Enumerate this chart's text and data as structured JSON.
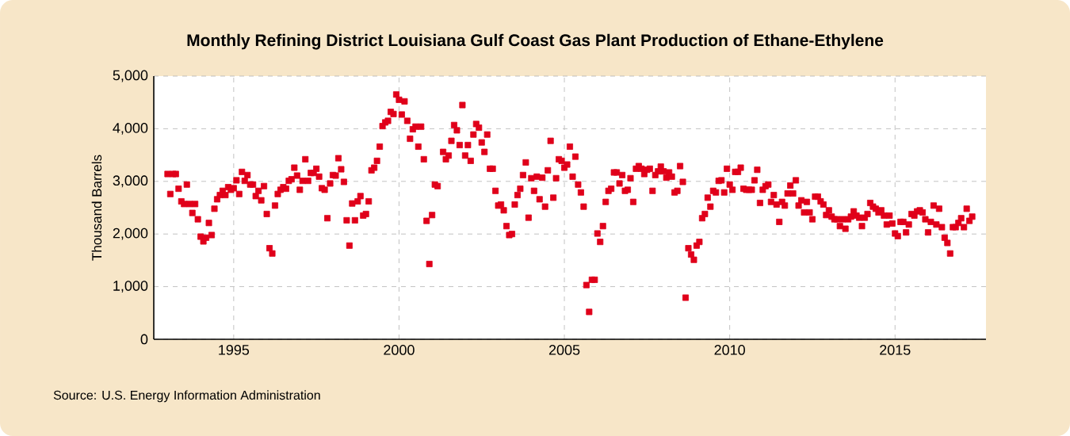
{
  "chart_data": {
    "type": "scatter",
    "title": "Monthly Refining District Louisiana Gulf Coast Gas Plant Production of Ethane-Ethylene",
    "ylabel": "Thousand Barrels",
    "annotations": [
      "Source: U.S. Energy Information Administration"
    ],
    "color": "#e0001a",
    "marker": "square",
    "grid": true,
    "xlim": [
      "1992-08",
      "2017-10"
    ],
    "xticks": [
      "1995",
      "2000",
      "2005",
      "2010",
      "2015"
    ],
    "ylim": [
      0,
      5000
    ],
    "yticks": [
      0,
      {
        "value": 1000,
        "label": "1,000"
      },
      {
        "value": 2000,
        "label": "2,000"
      },
      {
        "value": 3000,
        "label": "3,000"
      },
      {
        "value": 4000,
        "label": "4,000"
      },
      {
        "value": 5000,
        "label": "5,000"
      }
    ],
    "x": [
      "1993-01",
      "1993-02",
      "1993-03",
      "1993-04",
      "1993-05",
      "1993-06",
      "1993-07",
      "1993-08",
      "1993-09",
      "1993-10",
      "1993-11",
      "1993-12",
      "1994-01",
      "1994-02",
      "1994-03",
      "1994-04",
      "1994-05",
      "1994-06",
      "1994-07",
      "1994-08",
      "1994-09",
      "1994-10",
      "1994-11",
      "1994-12",
      "1995-01",
      "1995-02",
      "1995-03",
      "1995-04",
      "1995-05",
      "1995-06",
      "1995-07",
      "1995-08",
      "1995-09",
      "1995-10",
      "1995-11",
      "1995-12",
      "1996-01",
      "1996-02",
      "1996-03",
      "1996-04",
      "1996-05",
      "1996-06",
      "1996-07",
      "1996-08",
      "1996-09",
      "1996-10",
      "1996-11",
      "1996-12",
      "1997-01",
      "1997-02",
      "1997-03",
      "1997-04",
      "1997-05",
      "1997-06",
      "1997-07",
      "1997-08",
      "1997-09",
      "1997-10",
      "1997-11",
      "1997-12",
      "1998-01",
      "1998-02",
      "1998-03",
      "1998-04",
      "1998-05",
      "1998-06",
      "1998-07",
      "1998-08",
      "1998-09",
      "1998-10",
      "1998-11",
      "1998-12",
      "1999-01",
      "1999-02",
      "1999-03",
      "1999-04",
      "1999-05",
      "1999-06",
      "1999-07",
      "1999-08",
      "1999-09",
      "1999-10",
      "1999-11",
      "1999-12",
      "2000-01",
      "2000-02",
      "2000-03",
      "2000-04",
      "2000-05",
      "2000-06",
      "2000-07",
      "2000-08",
      "2000-09",
      "2000-10",
      "2000-11",
      "2000-12",
      "2001-01",
      "2001-02",
      "2001-03",
      "2001-05",
      "2001-06",
      "2001-07",
      "2001-08",
      "2001-09",
      "2001-10",
      "2001-11",
      "2001-12",
      "2002-01",
      "2002-02",
      "2002-03",
      "2002-04",
      "2002-05",
      "2002-06",
      "2002-07",
      "2002-08",
      "2002-09",
      "2002-10",
      "2002-11",
      "2002-12",
      "2003-01",
      "2003-02",
      "2003-03",
      "2003-04",
      "2003-05",
      "2003-06",
      "2003-07",
      "2003-08",
      "2003-09",
      "2003-10",
      "2003-11",
      "2003-12",
      "2004-01",
      "2004-02",
      "2004-03",
      "2004-04",
      "2004-05",
      "2004-06",
      "2004-07",
      "2004-08",
      "2004-09",
      "2004-10",
      "2004-11",
      "2004-12",
      "2005-01",
      "2005-02",
      "2005-03",
      "2005-04",
      "2005-05",
      "2005-06",
      "2005-07",
      "2005-08",
      "2005-09",
      "2005-10",
      "2005-11",
      "2005-12",
      "2006-01",
      "2006-02",
      "2006-03",
      "2006-04",
      "2006-05",
      "2006-06",
      "2006-07",
      "2006-08",
      "2006-09",
      "2006-10",
      "2006-11",
      "2006-12",
      "2007-01",
      "2007-02",
      "2007-03",
      "2007-04",
      "2007-05",
      "2007-06",
      "2007-07",
      "2007-08",
      "2007-09",
      "2007-10",
      "2007-11",
      "2007-12",
      "2008-01",
      "2008-02",
      "2008-03",
      "2008-04",
      "2008-05",
      "2008-06",
      "2008-07",
      "2008-08",
      "2008-09",
      "2008-10",
      "2008-11",
      "2008-12",
      "2009-01",
      "2009-02",
      "2009-03",
      "2009-04",
      "2009-05",
      "2009-06",
      "2009-07",
      "2009-08",
      "2009-09",
      "2009-10",
      "2009-11",
      "2009-12",
      "2010-01",
      "2010-02",
      "2010-03",
      "2010-04",
      "2010-05",
      "2010-06",
      "2010-07",
      "2010-08",
      "2010-09",
      "2010-10",
      "2010-11",
      "2010-12",
      "2011-01",
      "2011-02",
      "2011-03",
      "2011-04",
      "2011-05",
      "2011-06",
      "2011-07",
      "2011-08",
      "2011-09",
      "2011-10",
      "2011-11",
      "2011-12",
      "2012-01",
      "2012-02",
      "2012-03",
      "2012-04",
      "2012-05",
      "2012-06",
      "2012-07",
      "2012-08",
      "2012-09",
      "2012-10",
      "2012-11",
      "2012-12",
      "2013-01",
      "2013-02",
      "2013-03",
      "2013-04",
      "2013-05",
      "2013-06",
      "2013-07",
      "2013-08",
      "2013-09",
      "2013-10",
      "2013-11",
      "2013-12",
      "2014-01",
      "2014-02",
      "2014-03",
      "2014-04",
      "2014-05",
      "2014-06",
      "2014-07",
      "2014-08",
      "2014-09",
      "2014-10",
      "2014-11",
      "2014-12",
      "2015-01",
      "2015-02",
      "2015-03",
      "2015-04",
      "2015-05",
      "2015-06",
      "2015-07",
      "2015-08",
      "2015-09",
      "2015-10",
      "2015-11",
      "2015-12",
      "2016-01",
      "2016-02",
      "2016-03",
      "2016-04",
      "2016-05",
      "2016-06",
      "2016-07",
      "2016-08",
      "2016-09",
      "2016-10",
      "2016-11",
      "2016-12",
      "2017-01",
      "2017-02",
      "2017-03",
      "2017-04",
      "2017-05"
    ],
    "values": [
      3140,
      2760,
      3140,
      3140,
      2860,
      2620,
      2570,
      2940,
      2570,
      2400,
      2570,
      2280,
      1950,
      1860,
      1930,
      2210,
      1980,
      2480,
      2660,
      2740,
      2820,
      2740,
      2890,
      2840,
      2870,
      3020,
      2760,
      3180,
      3010,
      3120,
      2940,
      2940,
      2720,
      2820,
      2640,
      2910,
      2380,
      1730,
      1630,
      2540,
      2760,
      2840,
      2890,
      2860,
      3010,
      3040,
      3260,
      3110,
      2840,
      3010,
      3420,
      3010,
      3160,
      3160,
      3240,
      3090,
      2870,
      2840,
      2300,
      2960,
      3120,
      3110,
      3440,
      3230,
      2990,
      2260,
      1780,
      2580,
      2260,
      2620,
      2720,
      2350,
      2380,
      2620,
      3210,
      3260,
      3390,
      3660,
      4050,
      4120,
      4150,
      4320,
      4280,
      4650,
      4550,
      4270,
      4520,
      4150,
      3810,
      3990,
      4040,
      3660,
      4040,
      3420,
      2250,
      1430,
      2360,
      2940,
      2910,
      3560,
      3420,
      3490,
      3770,
      4070,
      3970,
      3690,
      4450,
      3490,
      3690,
      3390,
      3890,
      4090,
      4020,
      3740,
      3560,
      3890,
      3240,
      3240,
      2820,
      2540,
      2560,
      2450,
      2150,
      1980,
      2000,
      2560,
      2740,
      2860,
      3120,
      3360,
      2310,
      3060,
      2820,
      3090,
      2660,
      3070,
      2520,
      3210,
      3770,
      2690,
      3060,
      3420,
      3390,
      3260,
      3320,
      3660,
      3090,
      3470,
      2940,
      2790,
      2520,
      1030,
      520,
      1130,
      1130,
      2010,
      1850,
      2150,
      2610,
      2820,
      2860,
      3170,
      3170,
      2960,
      3120,
      2820,
      2840,
      3060,
      2610,
      3240,
      3290,
      3240,
      3140,
      3220,
      3240,
      2820,
      3120,
      3190,
      3280,
      3190,
      3070,
      3170,
      3090,
      2790,
      2820,
      3290,
      2990,
      790,
      1730,
      1610,
      1510,
      1780,
      1850,
      2300,
      2380,
      2690,
      2520,
      2820,
      2790,
      3010,
      3020,
      2790,
      3240,
      2940,
      2840,
      3180,
      3180,
      3260,
      2860,
      2840,
      2840,
      2840,
      3020,
      3220,
      2590,
      2840,
      2910,
      2940,
      2610,
      2740,
      2560,
      2230,
      2610,
      2540,
      2770,
      2920,
      2770,
      3020,
      2540,
      2640,
      2410,
      2610,
      2410,
      2280,
      2710,
      2710,
      2620,
      2560,
      2360,
      2450,
      2330,
      2280,
      2280,
      2150,
      2280,
      2100,
      2280,
      2330,
      2430,
      2350,
      2310,
      2150,
      2310,
      2380,
      2590,
      2520,
      2480,
      2410,
      2450,
      2350,
      2180,
      2350,
      2200,
      2010,
      1960,
      2230,
      2230,
      2030,
      2180,
      2380,
      2350,
      2430,
      2450,
      2410,
      2280,
      2030,
      2230,
      2540,
      2180,
      2480,
      2130,
      1930,
      1830,
      1630,
      2130,
      2130,
      2210,
      2300,
      2130,
      2480,
      2250,
      2330
    ]
  }
}
